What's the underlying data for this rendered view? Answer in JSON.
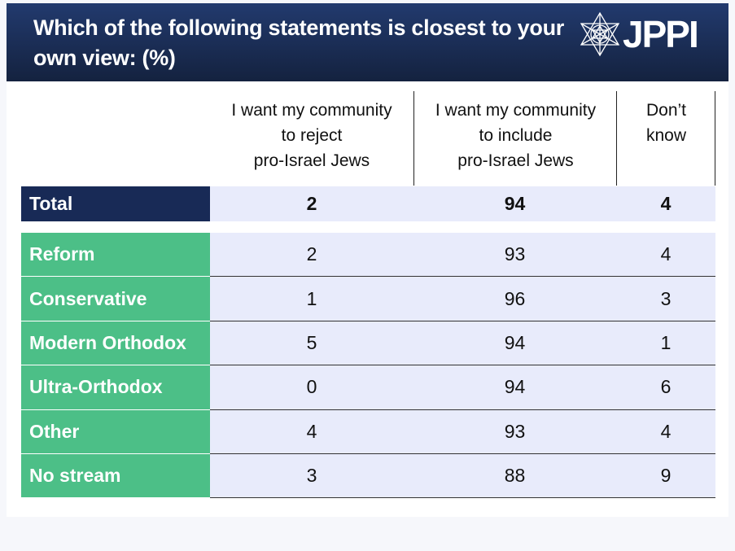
{
  "header": {
    "title": "Which of the following statements is closest to your own view: (%)",
    "logo": "JPPI"
  },
  "colors": {
    "header_bg": "#1b2d57",
    "total_label_bg": "#182a56",
    "group_label_bg": "#4cbf87",
    "cell_bg": "#e8ebfb"
  },
  "chart_data": {
    "type": "table",
    "title": "Which of the following statements is closest to your own view: (%)",
    "columns": [
      "I want my community to reject pro-Israel Jews",
      "I want my community to include pro-Israel Jews",
      "Don’t know"
    ],
    "columns_lines": [
      [
        "I want my community",
        "to reject",
        "pro-Israel Jews"
      ],
      [
        "I want my community",
        "to include",
        "pro-Israel Jews"
      ],
      [
        "Don’t",
        "know"
      ]
    ],
    "total": {
      "label": "Total",
      "values": [
        "2",
        "94",
        "4"
      ]
    },
    "rows": [
      {
        "label": "Reform",
        "values": [
          "2",
          "93",
          "4"
        ]
      },
      {
        "label": "Conservative",
        "values": [
          "1",
          "96",
          "3"
        ]
      },
      {
        "label": "Modern Orthodox",
        "values": [
          "5",
          "94",
          "1"
        ]
      },
      {
        "label": "Ultra-Orthodox",
        "values": [
          "0",
          "94",
          "6"
        ]
      },
      {
        "label": "Other",
        "values": [
          "4",
          "93",
          "4"
        ]
      },
      {
        "label": "No stream",
        "values": [
          "3",
          "88",
          "9"
        ]
      }
    ]
  }
}
